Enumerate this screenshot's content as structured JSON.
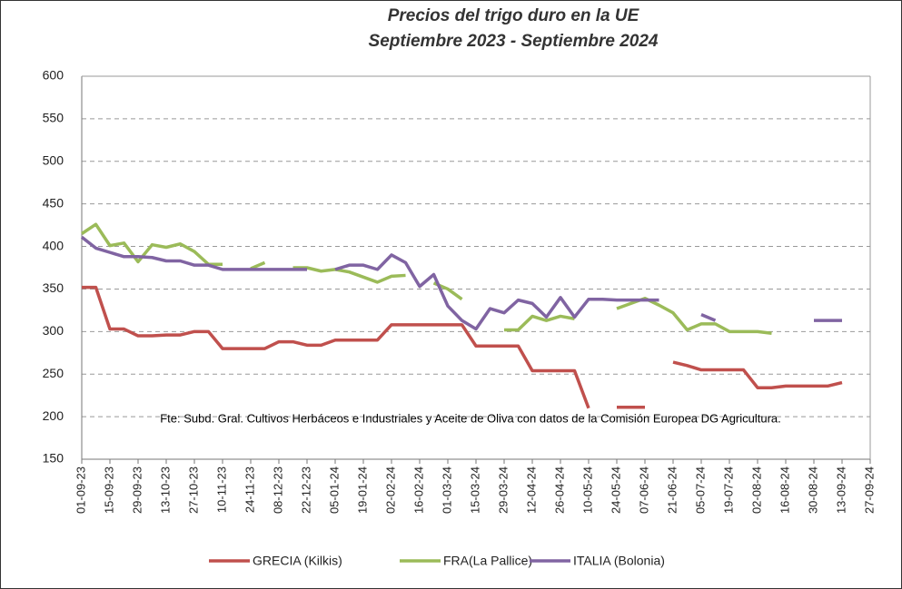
{
  "chart_data": {
    "type": "line",
    "title": "Precios del trigo duro en la UE",
    "subtitle": "Septiembre 2023 - Septiembre 2024",
    "annotation": "Fte: Subd. Gral. Cultivos Herbáceos e Industriales y Aceite de Oliva con datos de la Comisión Europea DG Agricultura.",
    "categories": [
      "01-09-23",
      null,
      "15-09-23",
      null,
      "29-09-23",
      null,
      "13-10-23",
      null,
      "27-10-23",
      null,
      "10-11-23",
      null,
      "24-11-23",
      null,
      "08-12-23",
      null,
      "22-12-23",
      null,
      "05-01-24",
      null,
      "19-01-24",
      null,
      "02-02-24",
      null,
      "16-02-24",
      null,
      "01-03-24",
      null,
      "15-03-24",
      null,
      "29-03-24",
      null,
      "12-04-24",
      null,
      "26-04-24",
      null,
      "10-05-24",
      null,
      "24-05-24",
      null,
      "07-06-24",
      null,
      "21-06-24",
      null,
      "05-07-24",
      null,
      "19-07-24",
      null,
      "02-08-24",
      null,
      "16-08-24",
      null,
      "30-08-24",
      null,
      "13-09-24",
      null,
      "27-09-24"
    ],
    "series": [
      {
        "name": "GRECIA (Kilkis)",
        "color": "#c0504d",
        "values": [
          352,
          352,
          303,
          303,
          295,
          295,
          296,
          296,
          300,
          300,
          280,
          280,
          280,
          280,
          288,
          288,
          284,
          284,
          290,
          290,
          290,
          290,
          308,
          308,
          308,
          308,
          308,
          308,
          283,
          283,
          283,
          283,
          254,
          254,
          254,
          254,
          210,
          null,
          211,
          211,
          211,
          null,
          264,
          260,
          255,
          255,
          255,
          255,
          234,
          234,
          236,
          236,
          236,
          236,
          240,
          null,
          null
        ]
      },
      {
        "name": "FRA(La Pallice)",
        "color": "#9bbb59",
        "values": [
          415,
          426,
          401,
          404,
          382,
          402,
          399,
          403,
          394,
          379,
          379,
          null,
          374,
          381,
          null,
          375,
          375,
          371,
          373,
          370,
          364,
          358,
          365,
          366,
          null,
          357,
          350,
          338,
          null,
          null,
          302,
          302,
          318,
          313,
          318,
          315,
          null,
          null,
          327,
          333,
          339,
          331,
          322,
          302,
          309,
          309,
          300,
          300,
          300,
          298,
          null,
          null,
          null,
          null,
          null,
          null,
          null
        ]
      },
      {
        "name": "ITALIA (Bolonia)",
        "color": "#8064a2",
        "values": [
          411,
          398,
          393,
          388,
          388,
          387,
          383,
          383,
          378,
          378,
          373,
          373,
          373,
          373,
          373,
          373,
          373,
          null,
          373,
          378,
          378,
          373,
          390,
          381,
          353,
          367,
          330,
          313,
          303,
          327,
          322,
          337,
          333,
          317,
          340,
          317,
          338,
          338,
          337,
          337,
          337,
          337,
          null,
          null,
          320,
          313,
          null,
          null,
          null,
          null,
          null,
          null,
          313,
          313,
          313,
          null,
          null
        ]
      }
    ],
    "ylim": [
      150,
      600
    ],
    "yticks": [
      150,
      200,
      250,
      300,
      350,
      400,
      450,
      500,
      550,
      600
    ],
    "grid": true
  }
}
